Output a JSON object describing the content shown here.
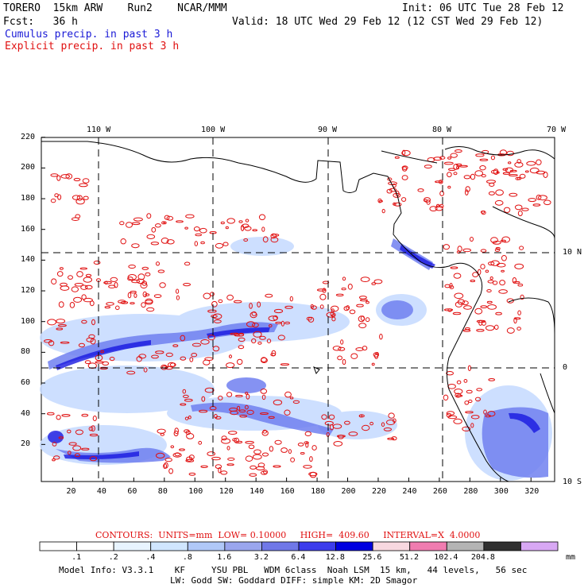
{
  "header": {
    "line1_left": "TORERO  15km ARW    Run2    NCAR/MMM",
    "line1_right": "Init: 06 UTC Tue 28 Feb 12",
    "line2_left": "Fcst:   36 h",
    "line2_right": "Valid: 18 UTC Wed 29 Feb 12 (12 CST Wed 29 Feb 12)",
    "legend_cumulus": "Cumulus precip. in past 3 h",
    "legend_explicit": "Explicit precip. in past 3 h"
  },
  "map": {
    "lon_labels": [
      "110 W",
      "100 W",
      "90 W",
      "80 W",
      "70 W"
    ],
    "lat_labels": [
      "10 N",
      "0",
      "10 S"
    ],
    "y_ticks": [
      "220",
      "200",
      "180",
      "160",
      "140",
      "120",
      "100",
      "80",
      "60",
      "40",
      "20"
    ],
    "x_ticks": [
      "20",
      "40",
      "60",
      "80",
      "100",
      "120",
      "140",
      "160",
      "180",
      "200",
      "220",
      "240",
      "260",
      "280",
      "300",
      "320"
    ],
    "colors": {
      "cumulus_light": "#c8dcff",
      "cumulus_mid": "#7080f0",
      "cumulus_dark": "#1818e0",
      "explicit_contour": "#e01010",
      "coastline": "#000000"
    }
  },
  "contour_info": {
    "label": "CONTOURS:  UNITS=mm  LOW= 0.10000     HIGH=  409.60     INTERVAL=X  4.0000"
  },
  "colorbar": {
    "labels": [
      ".1",
      ".2",
      ".4",
      ".8",
      "1.6",
      "3.2",
      "6.4",
      "12.8",
      "25.6",
      "51.2",
      "102.4",
      "204.8"
    ],
    "unit": "mm",
    "colors": [
      "#ffffff",
      "#ffffff",
      "#e8f4ff",
      "#d0e6ff",
      "#b0c8f8",
      "#9aa6ee",
      "#7078e8",
      "#3c3cec",
      "#0000e0",
      "#f8d8e0",
      "#f07cb0",
      "#b4b4b4",
      "#303030",
      "#d8a8f4"
    ]
  },
  "footer": {
    "line1": "Model Info: V3.3.1    KF     YSU PBL   WDM 6class  Noah LSM  15 km,   44 levels,   56 sec",
    "line2": "LW: Godd SW: Goddard DIFF: simple KM: 2D Smagor"
  }
}
